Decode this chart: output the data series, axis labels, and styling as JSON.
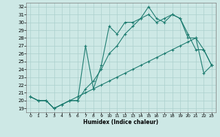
{
  "xlabel": "Humidex (Indice chaleur)",
  "background_color": "#cde8e5",
  "grid_color": "#aacfcc",
  "line_color": "#1a7a6e",
  "xlim": [
    -0.5,
    23.5
  ],
  "ylim": [
    18.5,
    32.5
  ],
  "xticks": [
    0,
    1,
    2,
    3,
    4,
    5,
    6,
    7,
    8,
    9,
    10,
    11,
    12,
    13,
    14,
    15,
    16,
    17,
    18,
    19,
    20,
    21,
    22,
    23
  ],
  "yticks": [
    19,
    20,
    21,
    22,
    23,
    24,
    25,
    26,
    27,
    28,
    29,
    30,
    31,
    32
  ],
  "series": [
    [
      20.5,
      20.0,
      20.0,
      19.0,
      19.5,
      20.0,
      20.0,
      27.0,
      21.5,
      24.5,
      29.5,
      28.5,
      30.0,
      30.0,
      30.5,
      32.0,
      30.5,
      30.0,
      31.0,
      30.5,
      28.5,
      26.5,
      26.5,
      24.5
    ],
    [
      20.5,
      20.0,
      20.0,
      19.0,
      19.5,
      20.0,
      20.0,
      21.5,
      22.5,
      24.0,
      26.0,
      27.0,
      28.5,
      29.5,
      30.5,
      31.0,
      30.0,
      30.5,
      31.0,
      30.5,
      28.0,
      28.0,
      26.5,
      24.5
    ],
    [
      20.5,
      20.0,
      20.0,
      19.0,
      19.5,
      20.0,
      20.5,
      21.0,
      21.5,
      22.0,
      22.5,
      23.0,
      23.5,
      24.0,
      24.5,
      25.0,
      25.5,
      26.0,
      26.5,
      27.0,
      27.5,
      28.0,
      23.5,
      24.5
    ]
  ]
}
